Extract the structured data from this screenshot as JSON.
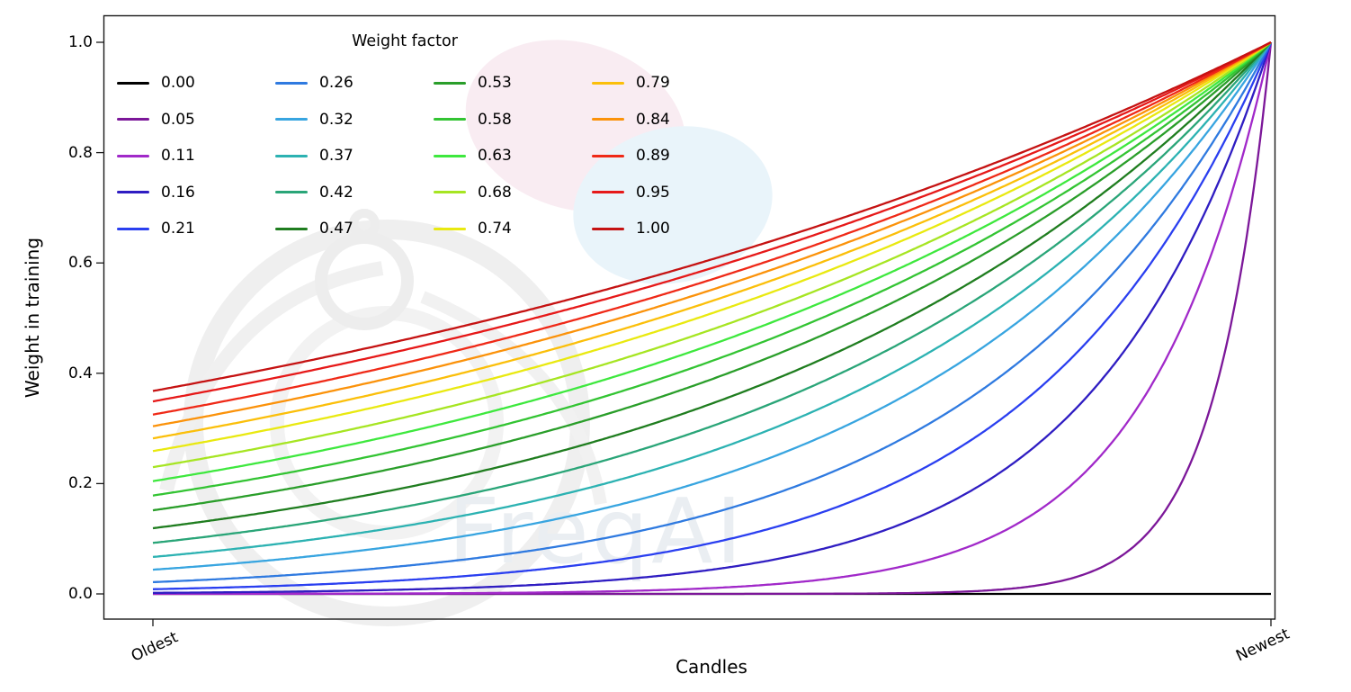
{
  "watermark": {
    "text": "FreqAI"
  },
  "chart_data": {
    "type": "line",
    "title": "",
    "xlabel": "Candles",
    "ylabel": "Weight in training",
    "legend_title": "Weight factor",
    "legend_position": "upper left",
    "grid": false,
    "x_tick_labels": [
      "Oldest",
      "Newest"
    ],
    "y_tick_labels": [
      "0.0",
      "0.2",
      "0.4",
      "0.6",
      "0.8",
      "1.0"
    ],
    "xlim": [
      0,
      1
    ],
    "ylim": [
      0,
      1
    ],
    "formula": "weight = exp(-(1 - x) / weight_factor) for x in [0,1] (Oldest to Newest); weight_factor = 0.00 stays at 0",
    "sample_x": [
      0,
      0.25,
      0.5,
      0.75,
      1
    ],
    "series": [
      {
        "name": "0.00",
        "factor": 0.0,
        "color": "#000000",
        "y_samples": [
          0,
          0,
          0,
          0,
          0
        ]
      },
      {
        "name": "0.05",
        "factor": 0.05,
        "color": "#7c1799",
        "y_samples": [
          0,
          0,
          0,
          0.007,
          1
        ]
      },
      {
        "name": "0.11",
        "factor": 0.11,
        "color": "#a129c9",
        "y_samples": [
          0,
          0.001,
          0.011,
          0.103,
          1
        ]
      },
      {
        "name": "0.16",
        "factor": 0.16,
        "color": "#2f1dc2",
        "y_samples": [
          0.002,
          0.009,
          0.044,
          0.21,
          1
        ]
      },
      {
        "name": "0.21",
        "factor": 0.21,
        "color": "#2a3ff0",
        "y_samples": [
          0.009,
          0.028,
          0.092,
          0.304,
          1
        ]
      },
      {
        "name": "0.26",
        "factor": 0.26,
        "color": "#2f7ae0",
        "y_samples": [
          0.021,
          0.056,
          0.146,
          0.382,
          1
        ]
      },
      {
        "name": "0.32",
        "factor": 0.32,
        "color": "#38a5e0",
        "y_samples": [
          0.044,
          0.096,
          0.21,
          0.458,
          1
        ]
      },
      {
        "name": "0.37",
        "factor": 0.37,
        "color": "#2cb2b2",
        "y_samples": [
          0.067,
          0.132,
          0.259,
          0.509,
          1
        ]
      },
      {
        "name": "0.42",
        "factor": 0.42,
        "color": "#2aa578",
        "y_samples": [
          0.092,
          0.167,
          0.304,
          0.551,
          1
        ]
      },
      {
        "name": "0.47",
        "factor": 0.47,
        "color": "#1f7d1f",
        "y_samples": [
          0.119,
          0.203,
          0.345,
          0.587,
          1
        ]
      },
      {
        "name": "0.53",
        "factor": 0.53,
        "color": "#2a9e2a",
        "y_samples": [
          0.152,
          0.243,
          0.389,
          0.624,
          1
        ]
      },
      {
        "name": "0.58",
        "factor": 0.58,
        "color": "#33c433",
        "y_samples": [
          0.178,
          0.274,
          0.422,
          0.65,
          1
        ]
      },
      {
        "name": "0.63",
        "factor": 0.63,
        "color": "#3ee83e",
        "y_samples": [
          0.204,
          0.304,
          0.452,
          0.672,
          1
        ]
      },
      {
        "name": "0.68",
        "factor": 0.68,
        "color": "#a6e522",
        "y_samples": [
          0.23,
          0.332,
          0.479,
          0.692,
          1
        ]
      },
      {
        "name": "0.74",
        "factor": 0.74,
        "color": "#e9e910",
        "y_samples": [
          0.259,
          0.363,
          0.509,
          0.713,
          1
        ]
      },
      {
        "name": "0.79",
        "factor": 0.79,
        "color": "#fbbf0a",
        "y_samples": [
          0.282,
          0.387,
          0.531,
          0.729,
          1
        ]
      },
      {
        "name": "0.84",
        "factor": 0.84,
        "color": "#fb920a",
        "y_samples": [
          0.304,
          0.409,
          0.551,
          0.742,
          1
        ]
      },
      {
        "name": "0.89",
        "factor": 0.89,
        "color": "#ef2917",
        "y_samples": [
          0.325,
          0.43,
          0.57,
          0.755,
          1
        ]
      },
      {
        "name": "0.95",
        "factor": 0.95,
        "color": "#e61919",
        "y_samples": [
          0.349,
          0.454,
          0.591,
          0.769,
          1
        ]
      },
      {
        "name": "1.00",
        "factor": 1.0,
        "color": "#c51212",
        "y_samples": [
          0.368,
          0.472,
          0.607,
          0.779,
          1
        ]
      }
    ]
  }
}
